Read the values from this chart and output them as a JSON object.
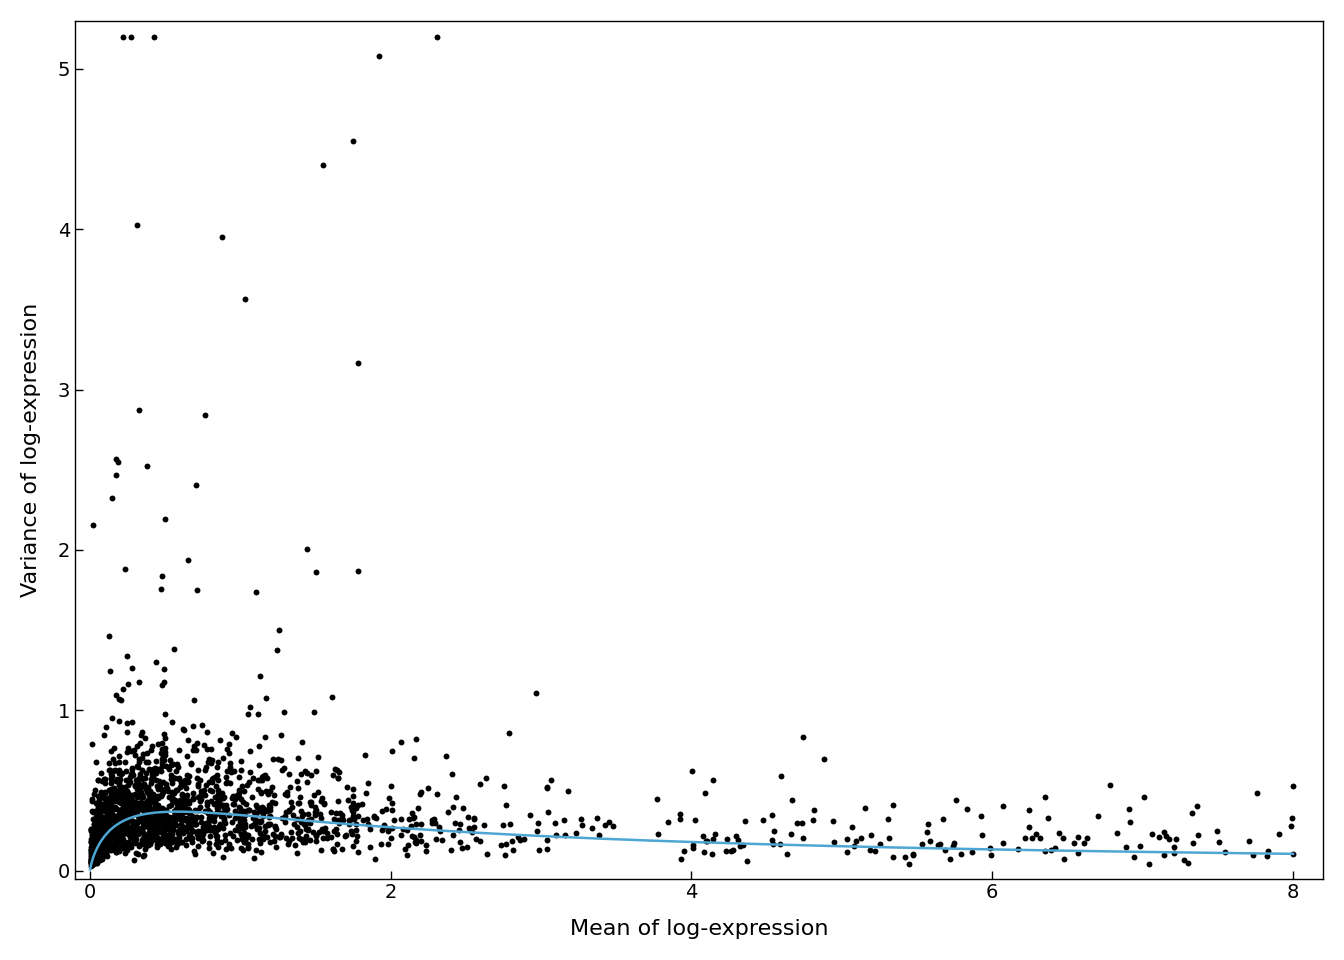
{
  "title": "",
  "xlabel": "Mean of log-expression",
  "ylabel": "Variance of log-expression",
  "xlim": [
    -0.1,
    8.2
  ],
  "ylim": [
    -0.05,
    5.3
  ],
  "xticks": [
    0,
    2,
    4,
    6,
    8
  ],
  "yticks": [
    0,
    1,
    2,
    3,
    4,
    5
  ],
  "scatter_color": "#000000",
  "scatter_size": 18,
  "line_color": "#4da6d4",
  "line_width": 1.8,
  "background_color": "#ffffff",
  "font_size_label": 16,
  "font_size_tick": 14,
  "seed": 42,
  "n_points": 2000,
  "poisson_pseudo_count": 1
}
